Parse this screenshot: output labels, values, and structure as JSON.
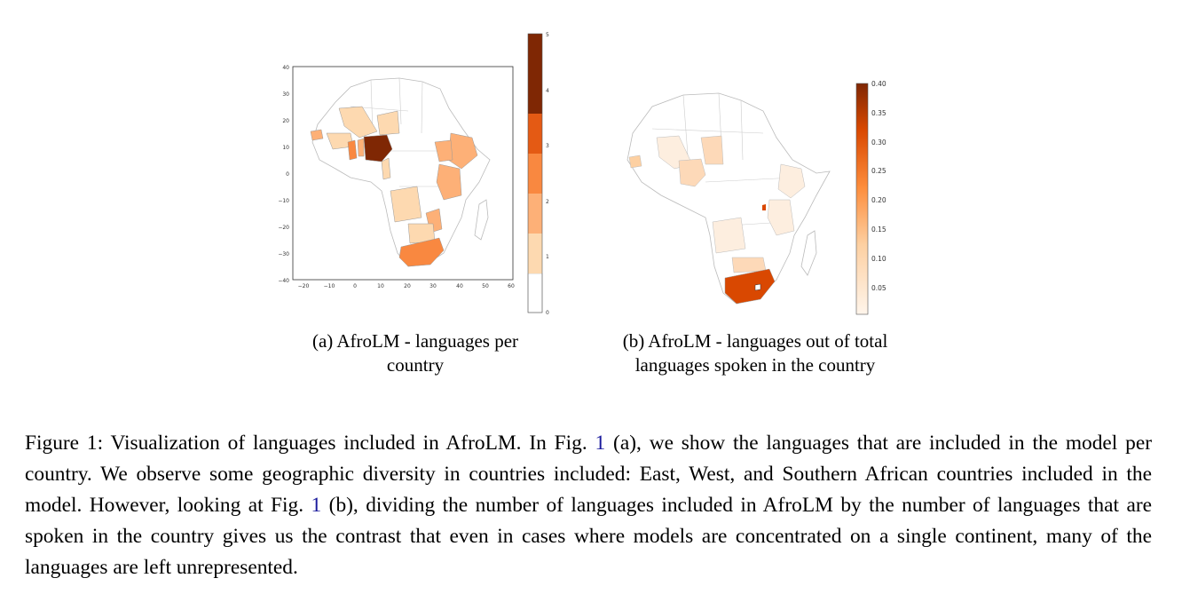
{
  "figure": {
    "subfigure_a": {
      "caption": "(a) AfroLM - languages per country",
      "map": {
        "x_ticks": [
          "−20",
          "−10",
          "0",
          "10",
          "20",
          "30",
          "40",
          "50",
          "60"
        ],
        "y_ticks": [
          "40",
          "30",
          "20",
          "10",
          "0",
          "−10",
          "−20",
          "−30",
          "−40"
        ],
        "colorbar_ticks": [
          "0",
          "1",
          "2",
          "3",
          "4",
          "5"
        ],
        "colorbar_colors": [
          "#ffffff",
          "#fdd9b0",
          "#fdb077",
          "#f98840",
          "#e45a14",
          "#7f2704"
        ]
      }
    },
    "subfigure_b": {
      "caption": "(b) AfroLM - languages out of total languages spoken in the country",
      "map": {
        "colorbar_ticks": [
          "0.40",
          "0.35",
          "0.30",
          "0.25",
          "0.20",
          "0.15",
          "0.10",
          "0.05"
        ],
        "colorbar_colors": [
          "#fff5eb",
          "#fdd0a2",
          "#fd8d3c",
          "#d94801",
          "#7f2704"
        ]
      }
    },
    "caption": {
      "text1": "Figure 1: Visualization of languages included in AfroLM. In Fig. ",
      "ref1": "1",
      "text2": " (a), we show the languages that are included in the model per country. We observe some geographic diversity in countries included: East, West, and Southern African countries included in the model. However, looking at Fig. ",
      "ref2": "1",
      "text3": " (b), dividing the number of languages included in AfroLM by the number of languages that are spoken in the country gives us the contrast that even in cases where models are concentrated on a single continent, many of the languages are left unrepresented."
    }
  }
}
